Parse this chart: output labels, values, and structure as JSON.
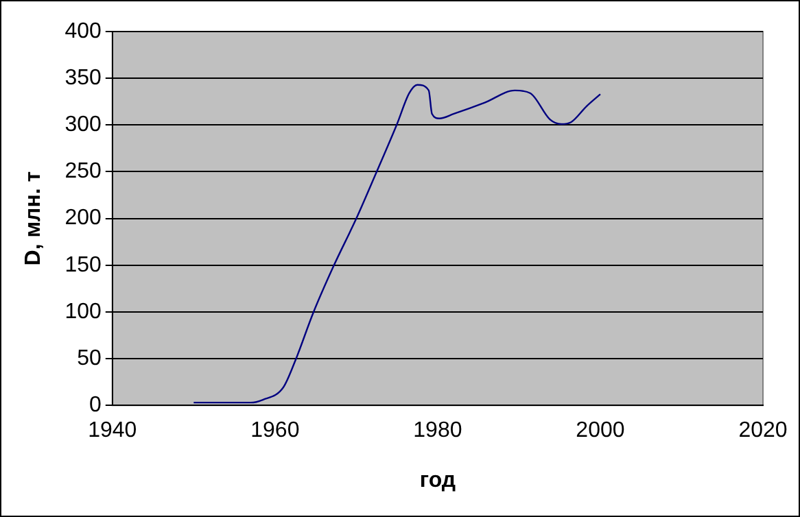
{
  "chart_data": {
    "type": "line",
    "xlabel": "год",
    "ylabel": "D, млн. т",
    "x": [
      1950,
      1957,
      1958.5,
      1961,
      1962.5,
      1964.7,
      1967.2,
      1970,
      1972.5,
      1975,
      1976.5,
      1977.5,
      1978.9,
      1979.3,
      1980.2,
      1982,
      1985.8,
      1989.5,
      1991.4,
      1993.8,
      1995.2,
      1996.4,
      1998.3,
      2000
    ],
    "series": [
      {
        "color": "#000080",
        "values": [
          3,
          3,
          6,
          19,
          48,
          99,
          149,
          200,
          250,
          301,
          334,
          343,
          337,
          312,
          307,
          312,
          324,
          337,
          334,
          306,
          301,
          303,
          320,
          333
        ]
      }
    ],
    "xlim": [
      1940,
      2020
    ],
    "xticks": [
      1940,
      1960,
      1980,
      2000,
      2020
    ],
    "ylim": [
      0,
      400
    ],
    "yticks": [
      0,
      50,
      100,
      150,
      200,
      250,
      300,
      350,
      400
    ],
    "grid": "y",
    "legend": false,
    "marker": "none",
    "line_style": "solid"
  }
}
